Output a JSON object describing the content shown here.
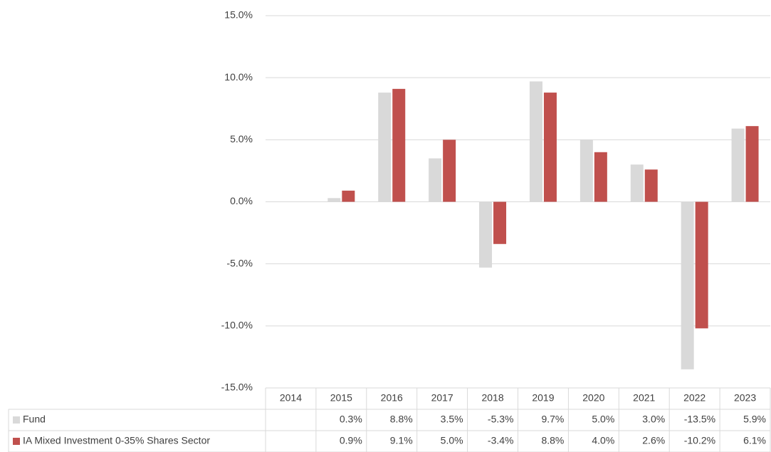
{
  "chart_data": {
    "type": "bar",
    "categories": [
      "2014",
      "2015",
      "2016",
      "2017",
      "2018",
      "2019",
      "2020",
      "2021",
      "2022",
      "2023"
    ],
    "series": [
      {
        "name": "Fund",
        "color": "#d9d9d9",
        "values": [
          null,
          0.3,
          8.8,
          3.5,
          -5.3,
          9.7,
          5.0,
          3.0,
          -13.5,
          5.9
        ],
        "value_labels": [
          null,
          "0.3%",
          "8.8%",
          "3.5%",
          "-5.3%",
          "9.7%",
          "5.0%",
          "3.0%",
          "-13.5%",
          "5.9%"
        ]
      },
      {
        "name": "IA Mixed Investment 0-35% Shares Sector",
        "color": "#c0504d",
        "values": [
          null,
          0.9,
          9.1,
          5.0,
          -3.4,
          8.8,
          4.0,
          2.6,
          -10.2,
          6.1
        ],
        "value_labels": [
          null,
          "0.9%",
          "9.1%",
          "5.0%",
          "-3.4%",
          "8.8%",
          "4.0%",
          "2.6%",
          "-10.2%",
          "6.1%"
        ]
      }
    ],
    "ylim": [
      -15,
      15
    ],
    "yticks": [
      {
        "value": -15,
        "label": "-15.0%"
      },
      {
        "value": -10,
        "label": "-10.0%"
      },
      {
        "value": -5,
        "label": "-5.0%"
      },
      {
        "value": 0,
        "label": "0.0%"
      },
      {
        "value": 5,
        "label": "5.0%"
      },
      {
        "value": 10,
        "label": "10.0%"
      },
      {
        "value": 15,
        "label": "15.0%"
      }
    ],
    "grid": true
  }
}
